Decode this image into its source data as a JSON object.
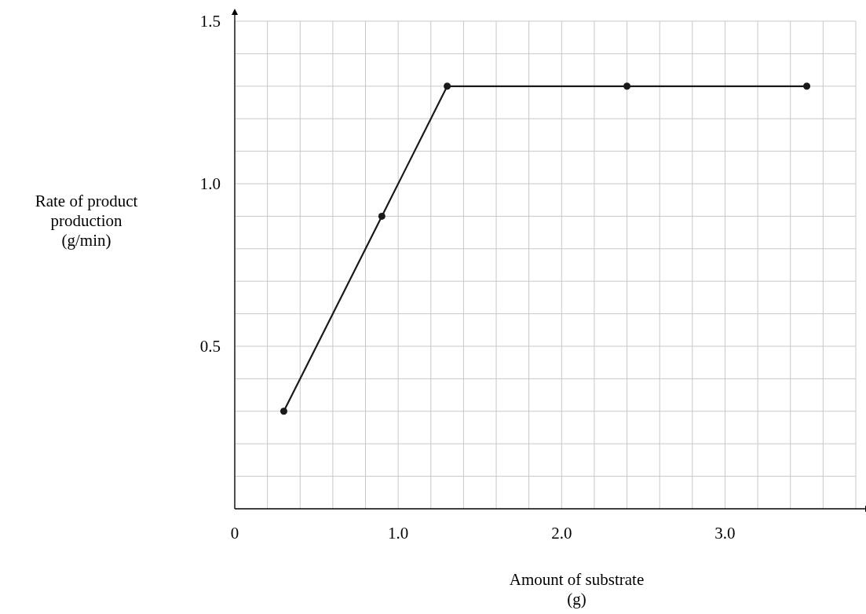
{
  "chart_data": {
    "type": "line",
    "xlabel": "Amount of substrate\n(g)",
    "ylabel": "Rate of product\nproduction\n(g/min)",
    "x": [
      0.3,
      0.9,
      1.3,
      2.4,
      3.5
    ],
    "series": [
      {
        "color": "#1a1a1a",
        "values": [
          0.3,
          0.9,
          1.3,
          1.3,
          1.3
        ]
      }
    ],
    "xlim": [
      0,
      3.8
    ],
    "ylim": [
      0,
      1.5
    ],
    "xticks": [
      {
        "value": 0,
        "label": "0"
      },
      {
        "value": 0.2,
        "label": null
      },
      {
        "value": 0.4,
        "label": null
      },
      {
        "value": 0.6,
        "label": null
      },
      {
        "value": 0.8,
        "label": null
      },
      {
        "value": 1,
        "label": "1.0"
      },
      {
        "value": 1.2,
        "label": null
      },
      {
        "value": 1.4,
        "label": null
      },
      {
        "value": 1.6,
        "label": null
      },
      {
        "value": 1.8,
        "label": null
      },
      {
        "value": 2,
        "label": "2.0"
      },
      {
        "value": 2.2,
        "label": null
      },
      {
        "value": 2.4,
        "label": null
      },
      {
        "value": 2.6,
        "label": null
      },
      {
        "value": 2.8,
        "label": null
      },
      {
        "value": 3,
        "label": "3.0"
      },
      {
        "value": 3.2,
        "label": null
      },
      {
        "value": 3.4,
        "label": null
      },
      {
        "value": 3.6,
        "label": null
      },
      {
        "value": 3.8,
        "label": null
      }
    ],
    "yticks": [
      {
        "value": 0.1,
        "label": null
      },
      {
        "value": 0.2,
        "label": null
      },
      {
        "value": 0.3,
        "label": null
      },
      {
        "value": 0.4,
        "label": null
      },
      0.5,
      {
        "value": 0.6,
        "label": null
      },
      {
        "value": 0.7,
        "label": null
      },
      {
        "value": 0.8,
        "label": null
      },
      {
        "value": 0.9,
        "label": null
      },
      {
        "value": 1,
        "label": "1.0"
      },
      {
        "value": 1.1,
        "label": null
      },
      {
        "value": 1.2,
        "label": null
      },
      {
        "value": 1.3,
        "label": null
      },
      {
        "value": 1.4,
        "label": null
      },
      1.5
    ],
    "grid": true,
    "marker": "circle",
    "line_style": "solid"
  }
}
